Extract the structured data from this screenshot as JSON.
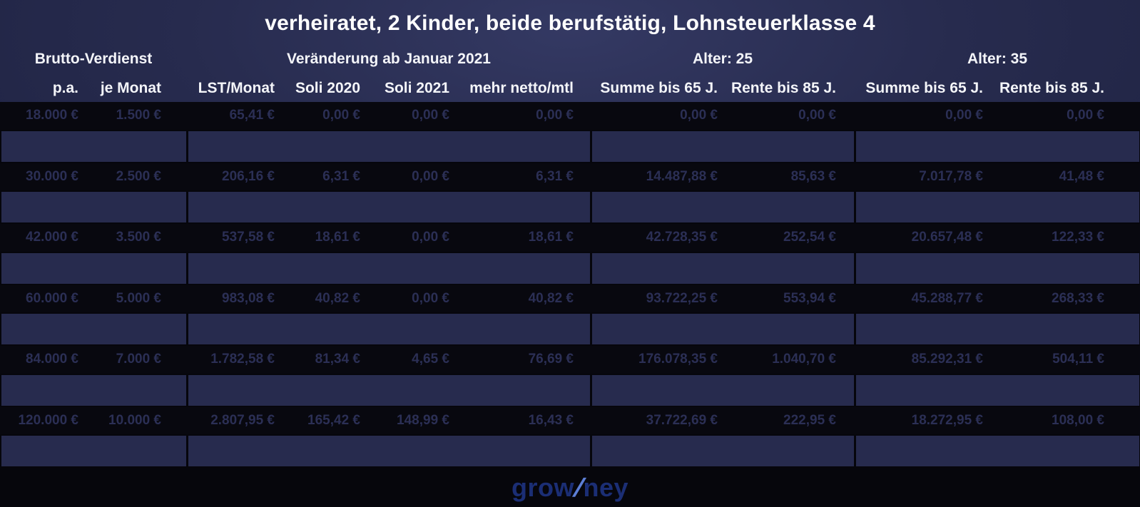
{
  "title": "verheiratet, 2 Kinder, beide berufstätig, Lohnsteuerklasse 4",
  "chart_data": {
    "type": "table",
    "title": "verheiratet, 2 Kinder, beide berufstätig, Lohnsteuerklasse 4",
    "column_groups": [
      {
        "label": "Brutto-Verdienst",
        "span_columns": 2
      },
      {
        "label": "Veränderung ab Januar 2021",
        "span_columns": 4
      },
      {
        "label": "Alter: 25",
        "span_columns": 2
      },
      {
        "label": "Alter: 35",
        "span_columns": 2
      }
    ],
    "columns": [
      "p.a.",
      "je Monat",
      "LST/Monat",
      "Soli 2020",
      "Soli 2021",
      "mehr netto/mtl",
      "Summe bis 65 J.",
      "Rente bis 85 J.",
      "Summe bis 65 J.",
      "Rente bis 85 J."
    ],
    "rows": [
      [
        "18.000 €",
        "1.500 €",
        "65,41 €",
        "0,00 €",
        "0,00 €",
        "0,00 €",
        "0,00 €",
        "0,00 €",
        "0,00 €",
        "0,00 €"
      ],
      [
        "30.000 €",
        "2.500 €",
        "206,16 €",
        "6,31 €",
        "0,00 €",
        "6,31 €",
        "14.487,88 €",
        "85,63 €",
        "7.017,78 €",
        "41,48 €"
      ],
      [
        "42.000 €",
        "3.500 €",
        "537,58 €",
        "18,61 €",
        "0,00 €",
        "18,61 €",
        "42.728,35 €",
        "252,54 €",
        "20.657,48 €",
        "122,33 €"
      ],
      [
        "60.000 €",
        "5.000 €",
        "983,08 €",
        "40,82 €",
        "0,00 €",
        "40,82 €",
        "93.722,25 €",
        "553,94 €",
        "45.288,77 €",
        "268,33 €"
      ],
      [
        "84.000 €",
        "7.000 €",
        "1.782,58 €",
        "81,34 €",
        "4,65 €",
        "76,69 €",
        "176.078,35 €",
        "1.040,70 €",
        "85.292,31 €",
        "504,11 €"
      ],
      [
        "120.000 €",
        "10.000 €",
        "2.807,95 €",
        "165,42 €",
        "148,99 €",
        "16,43 €",
        "37.722,69 €",
        "222,95 €",
        "18.272,95 €",
        "108,00 €"
      ]
    ]
  },
  "footer": {
    "logo_left": "grow",
    "logo_slash": "/",
    "logo_right": "ney"
  },
  "colors": {
    "background_navy": "#272b4e",
    "row_black": "#08080f",
    "row_value_text": "#2b2f55",
    "header_text": "#ffffff",
    "logo_blue": "#1b2e75",
    "logo_slash_blue": "#5d7fd6"
  }
}
